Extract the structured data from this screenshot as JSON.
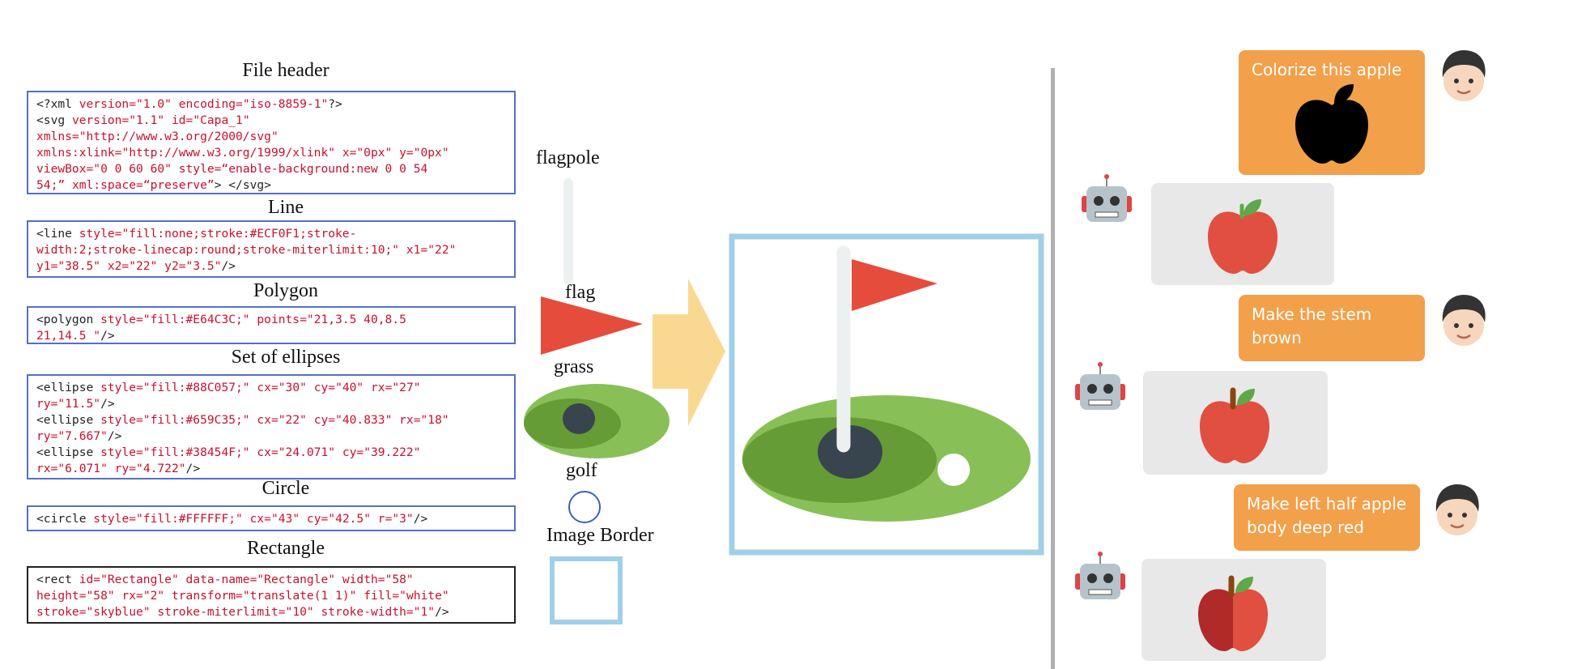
{
  "sections": [
    {
      "id": "file-header",
      "title": "File header",
      "lines": [
        [
          [
            "t",
            "<?xml "
          ],
          [
            "a",
            "version="
          ],
          [
            "v",
            "\"1.0\""
          ],
          [
            "a",
            " encoding="
          ],
          [
            "v",
            "\"iso-8859-1\""
          ],
          [
            "t",
            "?>"
          ]
        ],
        [
          [
            "t",
            "<svg "
          ],
          [
            "a",
            "version="
          ],
          [
            "v",
            "\"1.1\""
          ],
          [
            "a",
            " id="
          ],
          [
            "v",
            "\"Capa_1\""
          ]
        ],
        [
          [
            "a",
            "xmlns="
          ],
          [
            "v",
            "\"http://www.w3.org/2000/svg\""
          ]
        ],
        [
          [
            "a",
            "xmlns:xlink="
          ],
          [
            "v",
            "\"http://www.w3.org/1999/xlink\""
          ],
          [
            "a",
            " x="
          ],
          [
            "v",
            "\"0px\""
          ],
          [
            "a",
            " y="
          ],
          [
            "v",
            "\"0px\""
          ]
        ],
        [
          [
            "a",
            "viewBox="
          ],
          [
            "v",
            "\"0 0 60 60\""
          ],
          [
            "a",
            " style="
          ],
          [
            "v",
            "“enable-background:new 0 0 54"
          ]
        ],
        [
          [
            "v",
            "54;”"
          ],
          [
            "a",
            " xml:space="
          ],
          [
            "v",
            "“preserve”"
          ],
          [
            "t",
            "> </svg>"
          ]
        ]
      ]
    },
    {
      "id": "line",
      "title": "Line",
      "lines": [
        [
          [
            "t",
            "<line "
          ],
          [
            "a",
            "style="
          ],
          [
            "v",
            "\"fill:none;stroke:#ECF0F1;stroke-"
          ]
        ],
        [
          [
            "v",
            "width:2;stroke-linecap:round;stroke-miterlimit:10;\""
          ],
          [
            "a",
            " x1="
          ],
          [
            "v",
            "\"22\""
          ]
        ],
        [
          [
            "a",
            "y1="
          ],
          [
            "v",
            "\"38.5\""
          ],
          [
            "a",
            " x2="
          ],
          [
            "v",
            "\"22\""
          ],
          [
            "a",
            " y2="
          ],
          [
            "v",
            "\"3.5\""
          ],
          [
            "t",
            "/>"
          ]
        ]
      ]
    },
    {
      "id": "polygon",
      "title": "Polygon",
      "lines": [
        [
          [
            "t",
            "<polygon "
          ],
          [
            "a",
            "style="
          ],
          [
            "v",
            "\"fill:#E64C3C;\""
          ],
          [
            "a",
            " points="
          ],
          [
            "v",
            "\"21,3.5 40,8.5"
          ]
        ],
        [
          [
            "v",
            "21,14.5 \""
          ],
          [
            "t",
            "/>"
          ]
        ]
      ]
    },
    {
      "id": "ellipses",
      "title": "Set of ellipses",
      "lines": [
        [
          [
            "t",
            "<ellipse "
          ],
          [
            "a",
            "style="
          ],
          [
            "v",
            "\"fill:#88C057;\""
          ],
          [
            "a",
            " cx="
          ],
          [
            "v",
            "\"30\""
          ],
          [
            "a",
            " cy="
          ],
          [
            "v",
            "\"40\""
          ],
          [
            "a",
            " rx="
          ],
          [
            "v",
            "\"27\""
          ]
        ],
        [
          [
            "a",
            "ry="
          ],
          [
            "v",
            "\"11.5\""
          ],
          [
            "t",
            "/>"
          ]
        ],
        [
          [
            "t",
            "<ellipse "
          ],
          [
            "a",
            "style="
          ],
          [
            "v",
            "\"fill:#659C35;\""
          ],
          [
            "a",
            " cx="
          ],
          [
            "v",
            "\"22\""
          ],
          [
            "a",
            " cy="
          ],
          [
            "v",
            "\"40.833\""
          ],
          [
            "a",
            " rx="
          ],
          [
            "v",
            "\"18\""
          ]
        ],
        [
          [
            "a",
            "ry="
          ],
          [
            "v",
            "\"7.667\""
          ],
          [
            "t",
            "/>"
          ]
        ],
        [
          [
            "t",
            "<ellipse "
          ],
          [
            "a",
            "style="
          ],
          [
            "v",
            "\"fill:#38454F;\""
          ],
          [
            "a",
            " cx="
          ],
          [
            "v",
            "\"24.071\""
          ],
          [
            "a",
            " cy="
          ],
          [
            "v",
            "\"39.222\""
          ]
        ],
        [
          [
            "a",
            "rx="
          ],
          [
            "v",
            "\"6.071\""
          ],
          [
            "a",
            " ry="
          ],
          [
            "v",
            "\"4.722\""
          ],
          [
            "t",
            "/>"
          ]
        ]
      ]
    },
    {
      "id": "circle",
      "title": "Circle",
      "lines": [
        [
          [
            "t",
            "<circle "
          ],
          [
            "a",
            "style="
          ],
          [
            "v",
            "\"fill:#FFFFFF;\""
          ],
          [
            "a",
            " cx="
          ],
          [
            "v",
            "\"43\""
          ],
          [
            "a",
            " cy="
          ],
          [
            "v",
            "\"42.5\""
          ],
          [
            "a",
            " r="
          ],
          [
            "v",
            "\"3\""
          ],
          [
            "t",
            "/>"
          ]
        ]
      ]
    },
    {
      "id": "rectangle",
      "title": "Rectangle",
      "lines": [
        [
          [
            "t",
            "<rect "
          ],
          [
            "a",
            "id="
          ],
          [
            "v",
            "\"Rectangle\""
          ],
          [
            "a",
            " data-name="
          ],
          [
            "v",
            "\"Rectangle\""
          ],
          [
            "a",
            " width="
          ],
          [
            "v",
            "\"58\""
          ]
        ],
        [
          [
            "a",
            "height="
          ],
          [
            "v",
            "\"58\""
          ],
          [
            "a",
            " rx="
          ],
          [
            "v",
            "\"2\""
          ],
          [
            "a",
            " transform="
          ],
          [
            "v",
            "\"translate(1 1)\""
          ],
          [
            "a",
            " fill="
          ],
          [
            "v",
            "\"white\""
          ]
        ],
        [
          [
            "a",
            "stroke="
          ],
          [
            "v",
            "\"skyblue\""
          ],
          [
            "a",
            " stroke-miterlimit="
          ],
          [
            "v",
            "\"10\""
          ],
          [
            "a",
            " stroke-width="
          ],
          [
            "v",
            "\"1\""
          ],
          [
            "t",
            "/>"
          ]
        ]
      ]
    }
  ],
  "components": {
    "flagpole": "flagpole",
    "flag": "flag",
    "grass": "grass",
    "golf": "golf",
    "border": "Image Border"
  },
  "colors": {
    "pole": "#ECF0F1",
    "flag": "#E64C3C",
    "grass_light": "#88C057",
    "grass_dark": "#659C35",
    "hole": "#38454F",
    "ball": "#FFFFFF",
    "border": "skyblue",
    "arrow": "#f9d992",
    "user_bubble": "#f2a04a",
    "apple_red": "#e04f3f",
    "apple_deep_red": "#b02a2a",
    "stem_brown": "#8b4513",
    "leaf_green": "#5fa84a"
  },
  "chat": {
    "messages": [
      {
        "role": "user",
        "text": "Colorize this apple",
        "image": "black-apple"
      },
      {
        "role": "bot",
        "image": "red-apple"
      },
      {
        "role": "user",
        "text": "Make the stem brown"
      },
      {
        "role": "bot",
        "image": "red-apple-brown-stem"
      },
      {
        "role": "user",
        "text": "Make left half apple body deep red"
      },
      {
        "role": "bot",
        "image": "two-tone-apple"
      }
    ]
  }
}
